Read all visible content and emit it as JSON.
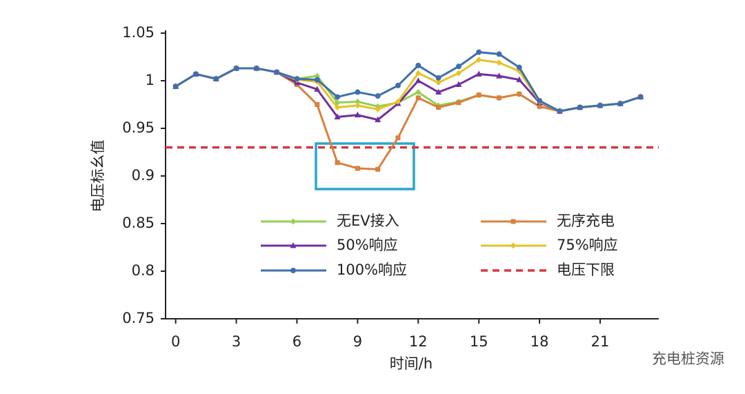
{
  "chart_data": {
    "type": "line",
    "x_label": "时间/h",
    "y_label": "电压标幺值",
    "x": [
      0,
      1,
      2,
      3,
      4,
      5,
      6,
      7,
      8,
      9,
      10,
      11,
      12,
      13,
      14,
      15,
      16,
      17,
      18,
      19,
      20,
      21,
      22,
      23
    ],
    "xlim": [
      -0.5,
      23.9
    ],
    "xticks": [
      0,
      3,
      6,
      9,
      12,
      15,
      18,
      21
    ],
    "ylim": [
      0.75,
      1.05
    ],
    "yticks": [
      0.75,
      0.8,
      0.85,
      0.9,
      0.95,
      1,
      1.05
    ],
    "series": [
      {
        "name": "无EV接入",
        "color": "#92d050",
        "marker": "diamond",
        "values": [
          0.994,
          1.007,
          1.002,
          1.013,
          1.013,
          1.009,
          1.002,
          1.005,
          0.977,
          0.978,
          0.973,
          0.977,
          0.988,
          0.974,
          0.978,
          0.985,
          0.982,
          0.986,
          0.973,
          0.968,
          0.972,
          0.974,
          0.976,
          0.983
        ]
      },
      {
        "name": "无序充电",
        "color": "#d9813d",
        "marker": "square",
        "values": [
          0.994,
          1.007,
          1.002,
          1.013,
          1.013,
          1.009,
          0.996,
          0.975,
          0.914,
          0.908,
          0.907,
          0.94,
          0.982,
          0.972,
          0.977,
          0.985,
          0.982,
          0.986,
          0.973,
          0.968,
          0.972,
          0.974,
          0.976,
          0.983
        ]
      },
      {
        "name": "50%响应",
        "color": "#7030a0",
        "marker": "triangle",
        "values": [
          0.994,
          1.007,
          1.002,
          1.013,
          1.013,
          1.009,
          0.998,
          0.991,
          0.962,
          0.964,
          0.959,
          0.976,
          1.0,
          0.988,
          0.996,
          1.007,
          1.005,
          1.001,
          0.977,
          0.968,
          0.972,
          0.974,
          0.976,
          0.983
        ]
      },
      {
        "name": "75%响应",
        "color": "#e6c228",
        "marker": "diamond",
        "values": [
          0.994,
          1.007,
          1.002,
          1.013,
          1.013,
          1.009,
          1.001,
          0.999,
          0.972,
          0.974,
          0.97,
          0.978,
          1.008,
          0.998,
          1.008,
          1.022,
          1.019,
          1.01,
          0.978,
          0.968,
          0.972,
          0.974,
          0.976,
          0.983
        ]
      },
      {
        "name": "100%响应",
        "color": "#3f6fad",
        "marker": "circle",
        "values": [
          0.994,
          1.007,
          1.002,
          1.013,
          1.013,
          1.009,
          1.002,
          1.001,
          0.983,
          0.988,
          0.984,
          0.995,
          1.016,
          1.003,
          1.015,
          1.03,
          1.028,
          1.014,
          0.979,
          0.968,
          0.972,
          0.974,
          0.976,
          0.983
        ]
      }
    ],
    "reference_line": {
      "name": "电压下限",
      "value": 0.93,
      "color": "#d9363e"
    },
    "watermark": "充电桩资源"
  }
}
